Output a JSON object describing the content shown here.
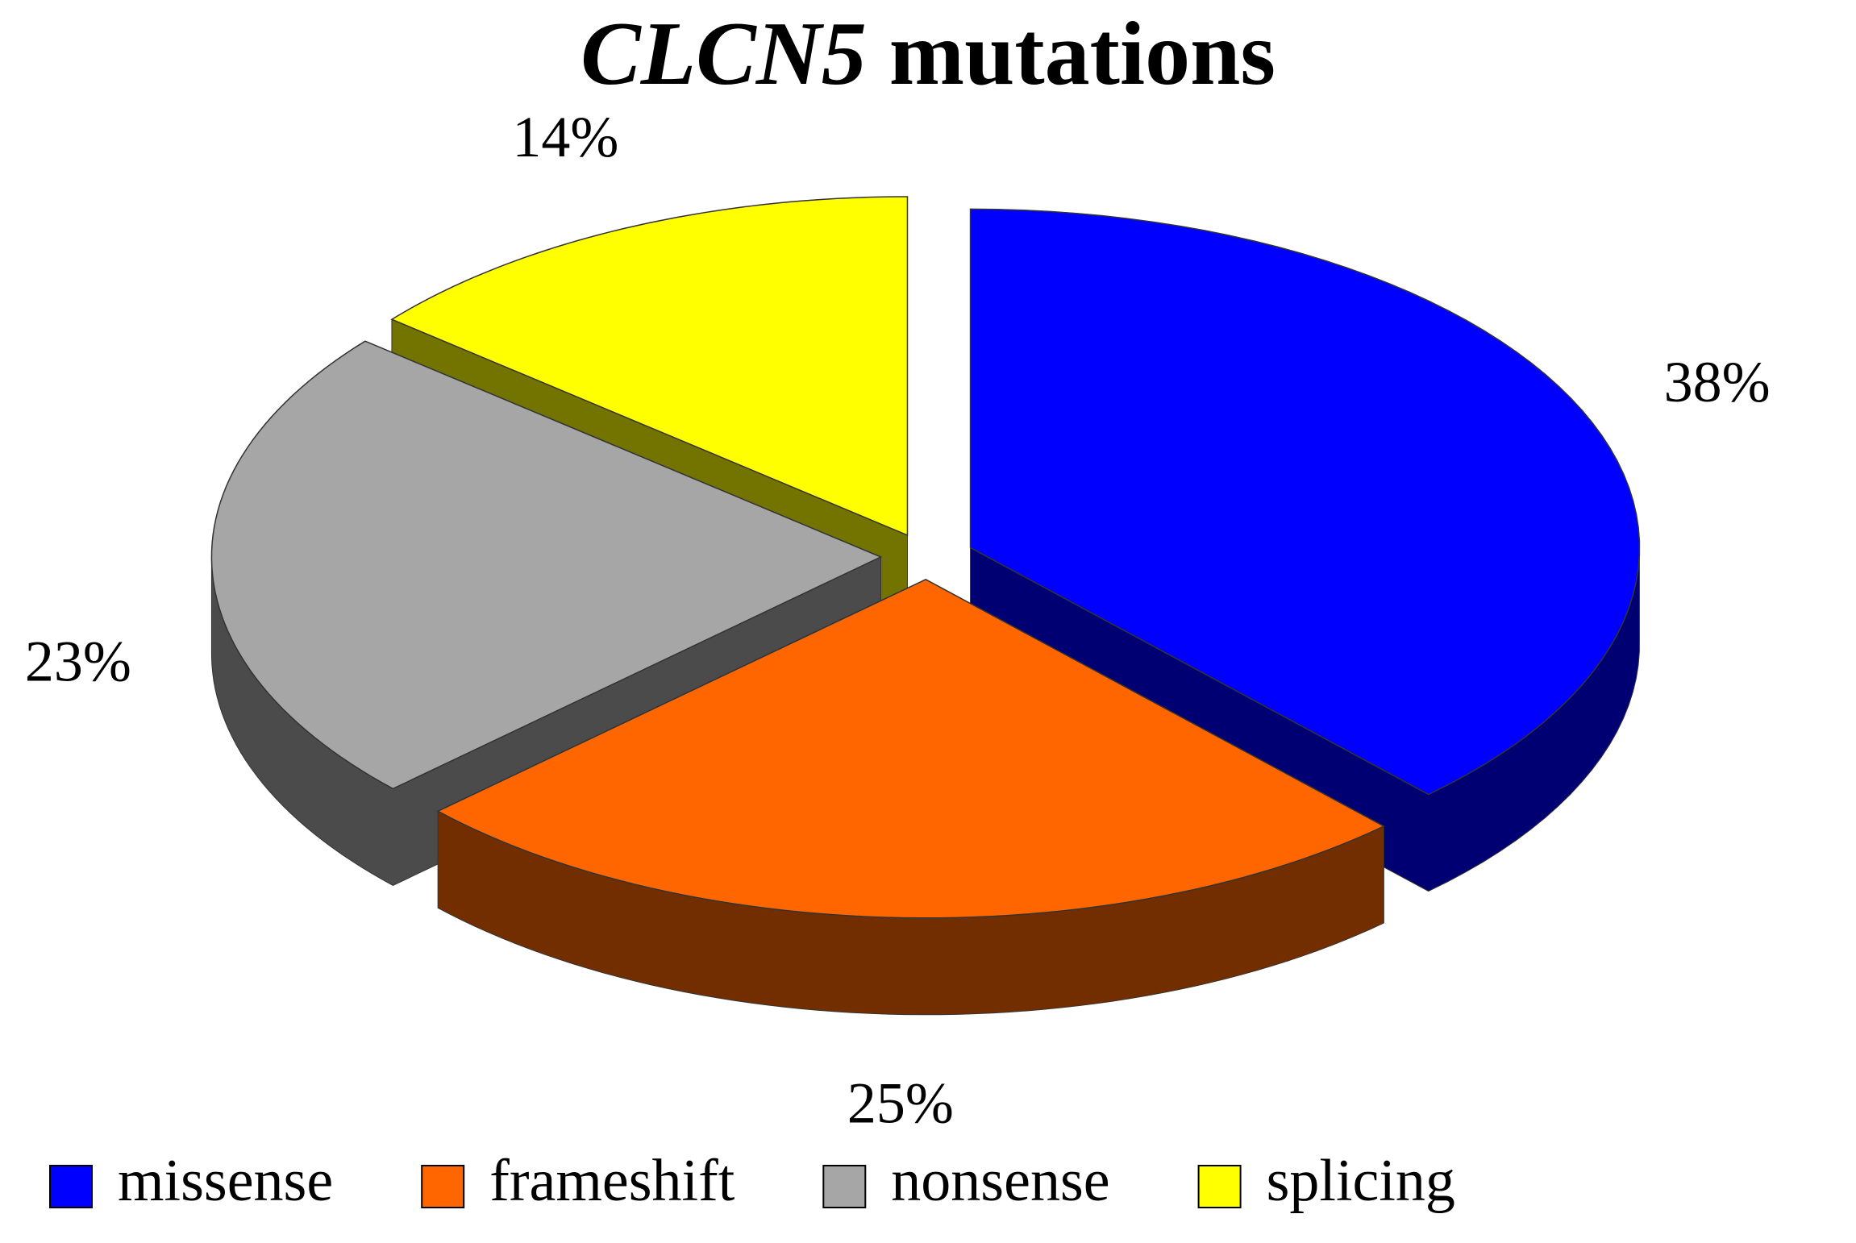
{
  "chart_data": {
    "type": "pie",
    "title": "CLCN5 mutations",
    "categories": [
      "missense",
      "frameshift",
      "nonsense",
      "splicing"
    ],
    "values": [
      38,
      25,
      23,
      14
    ],
    "value_labels": [
      "38%",
      "25%",
      "23%",
      "14%"
    ],
    "colors": [
      "#0000ff",
      "#ff6600",
      "#a6a6a6",
      "#ffff00"
    ],
    "legend": "bottom"
  }
}
